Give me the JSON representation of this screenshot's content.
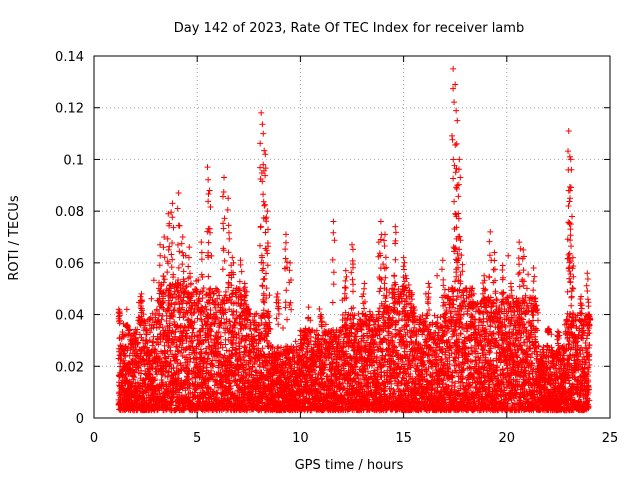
{
  "chart_data": {
    "type": "scatter",
    "title": "Day 142 of 2023, Rate Of TEC Index for receiver lamb",
    "xlabel": "GPS time / hours",
    "ylabel": "ROTI / TECUs",
    "xlim": [
      0,
      25
    ],
    "ylim": [
      0,
      0.14
    ],
    "xticks": [
      0,
      5,
      10,
      15,
      20,
      25
    ],
    "xtick_labels": [
      "0",
      "5",
      "10",
      "15",
      "20",
      "25"
    ],
    "yticks": [
      0,
      0.02,
      0.04,
      0.06,
      0.08,
      0.1,
      0.12,
      0.14
    ],
    "ytick_labels": [
      "0",
      "0.02",
      "0.04",
      "0.06",
      "0.08",
      "0.1",
      "0.12",
      "0.14"
    ],
    "grid": true,
    "marker": "+",
    "color": "#ff0000",
    "series": [
      {
        "name": "ROTI",
        "points": [
          [
            1.2,
            0.042
          ],
          [
            1.6,
            0.036
          ],
          [
            2.3,
            0.048
          ],
          [
            3.2,
            0.067
          ],
          [
            3.4,
            0.07
          ],
          [
            3.6,
            0.079
          ],
          [
            3.8,
            0.083
          ],
          [
            4.1,
            0.087
          ],
          [
            4.3,
            0.07
          ],
          [
            4.6,
            0.062
          ],
          [
            5.2,
            0.068
          ],
          [
            5.5,
            0.097
          ],
          [
            5.6,
            0.088
          ],
          [
            6.3,
            0.093
          ],
          [
            6.5,
            0.085
          ],
          [
            6.7,
            0.062
          ],
          [
            7.1,
            0.061
          ],
          [
            7.3,
            0.052
          ],
          [
            8.1,
            0.118
          ],
          [
            8.2,
            0.11
          ],
          [
            8.3,
            0.102
          ],
          [
            8.4,
            0.08
          ],
          [
            8.2,
            0.06
          ],
          [
            8.9,
            0.048
          ],
          [
            9.3,
            0.071
          ],
          [
            9.5,
            0.06
          ],
          [
            10.2,
            0.03
          ],
          [
            11.0,
            0.04
          ],
          [
            11.6,
            0.076
          ],
          [
            12.2,
            0.057
          ],
          [
            12.5,
            0.067
          ],
          [
            13.1,
            0.052
          ],
          [
            13.8,
            0.068
          ],
          [
            13.9,
            0.076
          ],
          [
            14.1,
            0.071
          ],
          [
            14.6,
            0.074
          ],
          [
            15.0,
            0.062
          ],
          [
            15.1,
            0.055
          ],
          [
            15.5,
            0.043
          ],
          [
            16.2,
            0.052
          ],
          [
            16.9,
            0.061
          ],
          [
            17.4,
            0.135
          ],
          [
            17.5,
            0.129
          ],
          [
            17.6,
            0.115
          ],
          [
            17.7,
            0.1
          ],
          [
            17.6,
            0.09
          ],
          [
            17.5,
            0.079
          ],
          [
            17.8,
            0.063
          ],
          [
            18.3,
            0.05
          ],
          [
            18.9,
            0.055
          ],
          [
            19.2,
            0.072
          ],
          [
            19.4,
            0.064
          ],
          [
            19.8,
            0.059
          ],
          [
            20.2,
            0.052
          ],
          [
            20.6,
            0.068
          ],
          [
            20.8,
            0.065
          ],
          [
            21.3,
            0.058
          ],
          [
            22.0,
            0.033
          ],
          [
            22.5,
            0.028
          ],
          [
            23.0,
            0.111
          ],
          [
            23.1,
            0.1
          ],
          [
            23.0,
            0.088
          ],
          [
            23.1,
            0.075
          ],
          [
            23.2,
            0.062
          ],
          [
            23.6,
            0.047
          ],
          [
            23.9,
            0.056
          ],
          [
            24.0,
            0.04
          ]
        ]
      }
    ],
    "dense_band": {
      "x_start": 1.2,
      "x_end": 24.0,
      "y_floor": 0.003,
      "active_periods": [
        [
          1.2,
          2.1,
          0.025
        ],
        [
          2.1,
          3.0,
          0.03
        ],
        [
          3.0,
          5.0,
          0.04
        ],
        [
          5.0,
          7.5,
          0.038
        ],
        [
          7.5,
          8.6,
          0.03
        ],
        [
          8.6,
          10.0,
          0.02
        ],
        [
          10.0,
          12.0,
          0.025
        ],
        [
          12.0,
          14.0,
          0.03
        ],
        [
          14.0,
          15.5,
          0.038
        ],
        [
          15.5,
          17.0,
          0.03
        ],
        [
          17.0,
          18.5,
          0.038
        ],
        [
          18.5,
          21.5,
          0.035
        ],
        [
          21.5,
          22.8,
          0.02
        ],
        [
          22.8,
          24.0,
          0.03
        ]
      ]
    }
  }
}
